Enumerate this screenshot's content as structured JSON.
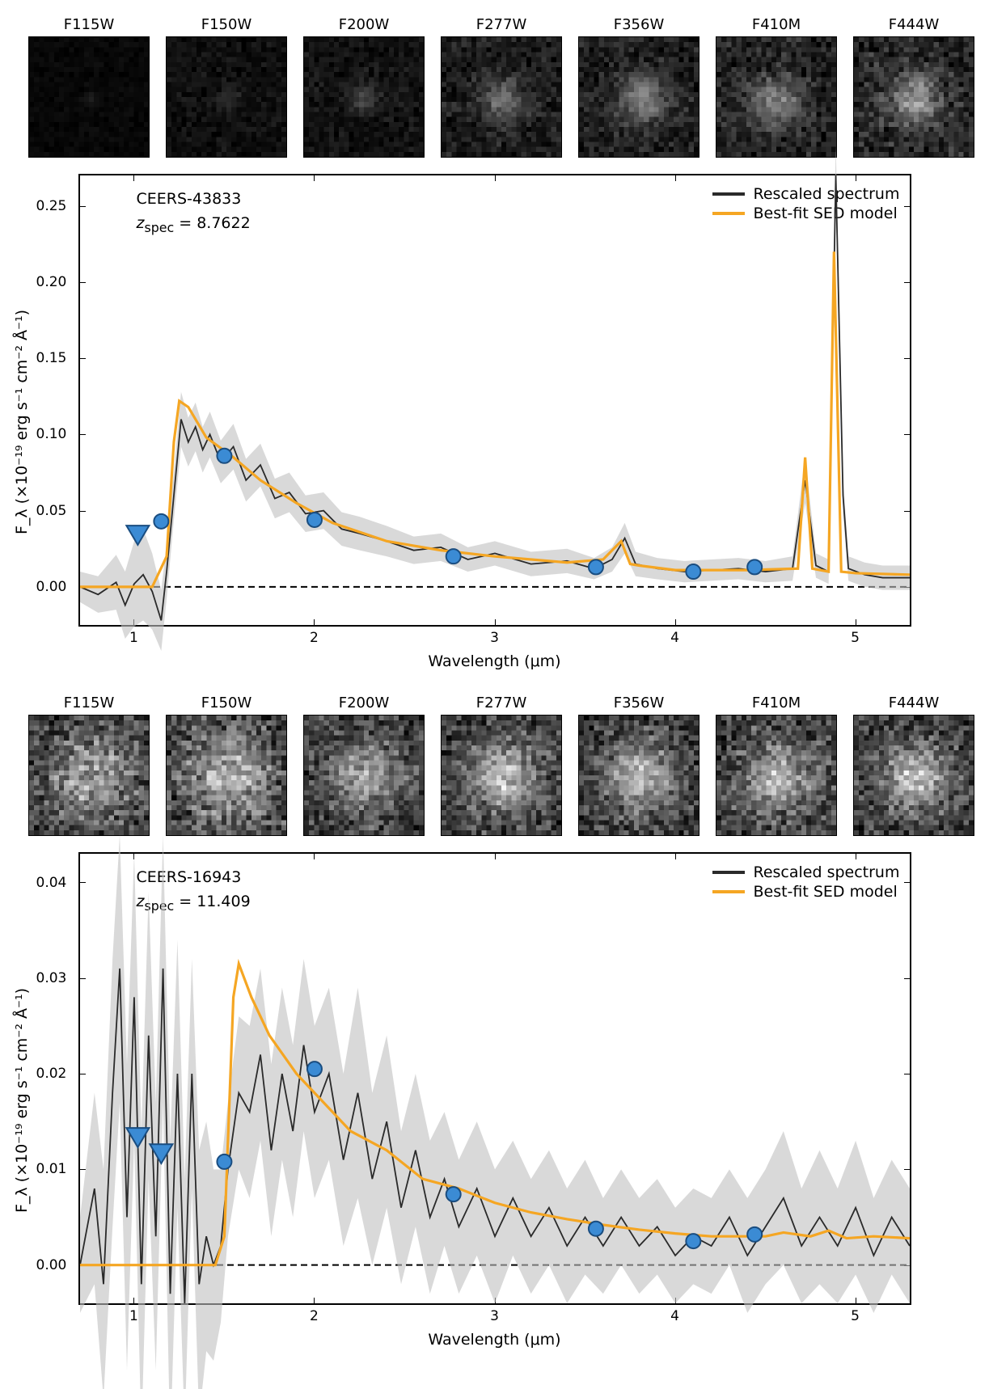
{
  "filters": [
    "F115W",
    "F150W",
    "F200W",
    "F277W",
    "F356W",
    "F410M",
    "F444W"
  ],
  "axis_labels": {
    "x": "Wavelength (μm)",
    "y": "F_λ (×10⁻¹⁹ erg s⁻¹ cm⁻² Å⁻¹)"
  },
  "legend": {
    "spectrum": "Rescaled spectrum",
    "sed": "Best-fit SED model"
  },
  "colors": {
    "spectrum": "#2a2a2a",
    "spectrum_band": "#bfbfbf",
    "sed": "#f5a623",
    "phot_fill": "#3b8bd4",
    "phot_edge": "#1a4d80",
    "axis": "#000000",
    "bg": "#ffffff"
  },
  "marker": {
    "radius": 9,
    "tri_size": 14,
    "line_width": 3.2
  },
  "panels": [
    {
      "id": "CEERS-43833",
      "zspec": "8.7622",
      "thumbs": [
        [
          [
            0.05,
            0.48,
            0.52,
            1
          ],
          [
            0.04,
            0.5,
            0.48,
            0.95
          ]
        ],
        [
          [
            0.1,
            0.48,
            0.52,
            1.5
          ],
          [
            0.05,
            0.52,
            0.47,
            1.4
          ]
        ],
        [
          [
            0.12,
            0.5,
            0.5,
            2.0
          ],
          [
            0.08,
            0.45,
            0.52,
            1.8
          ]
        ],
        [
          [
            0.18,
            0.5,
            0.5,
            3.2
          ],
          [
            0.15,
            0.48,
            0.52,
            3.0
          ]
        ],
        [
          [
            0.2,
            0.5,
            0.5,
            3.5
          ],
          [
            0.18,
            0.52,
            0.48,
            3.3
          ]
        ],
        [
          [
            0.22,
            0.5,
            0.49,
            3.6
          ],
          [
            0.18,
            0.43,
            0.56,
            3.4
          ]
        ],
        [
          [
            0.25,
            0.5,
            0.5,
            3.8
          ],
          [
            0.2,
            0.48,
            0.51,
            3.5
          ]
        ]
      ],
      "xlim": [
        0.7,
        5.3
      ],
      "ylim": [
        -0.025,
        0.27
      ],
      "xticks": [
        1,
        2,
        3,
        4,
        5
      ],
      "yticks": [
        0.0,
        0.05,
        0.1,
        0.15,
        0.2,
        0.25
      ],
      "phot_circles": [
        [
          1.15,
          0.043
        ],
        [
          1.5,
          0.086
        ],
        [
          2.0,
          0.044
        ],
        [
          2.77,
          0.02
        ],
        [
          3.56,
          0.013
        ],
        [
          4.1,
          0.01
        ],
        [
          4.44,
          0.013
        ]
      ],
      "phot_triangles": [
        [
          1.02,
          0.035
        ]
      ],
      "sed": [
        [
          0.7,
          0.0
        ],
        [
          1.1,
          0.0
        ],
        [
          1.18,
          0.02
        ],
        [
          1.22,
          0.095
        ],
        [
          1.25,
          0.122
        ],
        [
          1.3,
          0.118
        ],
        [
          1.4,
          0.098
        ],
        [
          1.55,
          0.085
        ],
        [
          1.7,
          0.07
        ],
        [
          1.9,
          0.055
        ],
        [
          2.1,
          0.042
        ],
        [
          2.4,
          0.03
        ],
        [
          2.7,
          0.024
        ],
        [
          3.0,
          0.02
        ],
        [
          3.4,
          0.016
        ],
        [
          3.6,
          0.018
        ],
        [
          3.7,
          0.03
        ],
        [
          3.75,
          0.015
        ],
        [
          3.8,
          0.014
        ],
        [
          4.0,
          0.011
        ],
        [
          4.4,
          0.011
        ],
        [
          4.68,
          0.012
        ],
        [
          4.72,
          0.085
        ],
        [
          4.76,
          0.012
        ],
        [
          4.85,
          0.01
        ],
        [
          4.88,
          0.22
        ],
        [
          4.92,
          0.01
        ],
        [
          5.0,
          0.009
        ],
        [
          5.3,
          0.008
        ]
      ],
      "spectrum": [
        [
          0.7,
          0.0,
          0.01
        ],
        [
          0.8,
          -0.005,
          0.012
        ],
        [
          0.9,
          0.003,
          0.018
        ],
        [
          0.95,
          -0.012,
          0.022
        ],
        [
          1.0,
          0.002,
          0.028
        ],
        [
          1.05,
          0.008,
          0.03
        ],
        [
          1.1,
          -0.003,
          0.025
        ],
        [
          1.15,
          -0.022,
          0.02
        ],
        [
          1.18,
          0.01,
          0.018
        ],
        [
          1.22,
          0.06,
          0.016
        ],
        [
          1.26,
          0.11,
          0.018
        ],
        [
          1.3,
          0.095,
          0.016
        ],
        [
          1.34,
          0.105,
          0.016
        ],
        [
          1.38,
          0.09,
          0.015
        ],
        [
          1.42,
          0.1,
          0.015
        ],
        [
          1.48,
          0.082,
          0.014
        ],
        [
          1.55,
          0.092,
          0.015
        ],
        [
          1.62,
          0.07,
          0.014
        ],
        [
          1.7,
          0.08,
          0.014
        ],
        [
          1.78,
          0.058,
          0.013
        ],
        [
          1.86,
          0.062,
          0.013
        ],
        [
          1.95,
          0.048,
          0.012
        ],
        [
          2.05,
          0.05,
          0.012
        ],
        [
          2.15,
          0.038,
          0.011
        ],
        [
          2.25,
          0.035,
          0.011
        ],
        [
          2.4,
          0.03,
          0.01
        ],
        [
          2.55,
          0.024,
          0.009
        ],
        [
          2.7,
          0.026,
          0.009
        ],
        [
          2.85,
          0.018,
          0.008
        ],
        [
          3.0,
          0.022,
          0.008
        ],
        [
          3.2,
          0.015,
          0.008
        ],
        [
          3.4,
          0.017,
          0.008
        ],
        [
          3.55,
          0.012,
          0.007
        ],
        [
          3.65,
          0.018,
          0.008
        ],
        [
          3.72,
          0.032,
          0.01
        ],
        [
          3.78,
          0.015,
          0.008
        ],
        [
          3.9,
          0.012,
          0.007
        ],
        [
          4.05,
          0.01,
          0.007
        ],
        [
          4.2,
          0.011,
          0.007
        ],
        [
          4.35,
          0.012,
          0.007
        ],
        [
          4.5,
          0.01,
          0.007
        ],
        [
          4.65,
          0.012,
          0.008
        ],
        [
          4.72,
          0.07,
          0.015
        ],
        [
          4.78,
          0.014,
          0.008
        ],
        [
          4.85,
          0.01,
          0.008
        ],
        [
          4.89,
          0.27,
          0.02
        ],
        [
          4.93,
          0.06,
          0.012
        ],
        [
          4.96,
          0.012,
          0.008
        ],
        [
          5.05,
          0.008,
          0.008
        ],
        [
          5.15,
          0.006,
          0.008
        ],
        [
          5.3,
          0.006,
          0.008
        ]
      ]
    },
    {
      "id": "CEERS-16943",
      "zspec": "11.409",
      "thumbs": [
        [
          [
            0.4,
            0.5,
            0.5,
            6
          ]
        ],
        [
          [
            0.42,
            0.5,
            0.5,
            6
          ]
        ],
        [
          [
            0.35,
            0.5,
            0.5,
            6
          ],
          [
            0.1,
            0.5,
            0.48,
            2.5
          ]
        ],
        [
          [
            0.35,
            0.5,
            0.5,
            6
          ],
          [
            0.15,
            0.5,
            0.48,
            3.0
          ],
          [
            0.1,
            0.45,
            0.55,
            2.4
          ]
        ],
        [
          [
            0.35,
            0.5,
            0.5,
            6
          ],
          [
            0.16,
            0.5,
            0.47,
            3.0
          ]
        ],
        [
          [
            0.37,
            0.5,
            0.5,
            6
          ],
          [
            0.15,
            0.48,
            0.5,
            3.0
          ]
        ],
        [
          [
            0.35,
            0.5,
            0.5,
            6
          ],
          [
            0.16,
            0.5,
            0.48,
            3.0
          ],
          [
            0.1,
            0.45,
            0.55,
            2.5
          ]
        ]
      ],
      "xlim": [
        0.7,
        5.3
      ],
      "ylim": [
        -0.004,
        0.043
      ],
      "xticks": [
        1,
        2,
        3,
        4,
        5
      ],
      "yticks": [
        0.0,
        0.01,
        0.02,
        0.03,
        0.04
      ],
      "phot_circles": [
        [
          1.5,
          0.0108
        ],
        [
          2.0,
          0.0205
        ],
        [
          2.77,
          0.0074
        ],
        [
          3.56,
          0.0038
        ],
        [
          4.1,
          0.0025
        ],
        [
          4.44,
          0.0032
        ]
      ],
      "phot_triangles": [
        [
          1.02,
          0.0135
        ],
        [
          1.15,
          0.0118
        ]
      ],
      "sed": [
        [
          0.7,
          0.0
        ],
        [
          1.45,
          0.0
        ],
        [
          1.5,
          0.003
        ],
        [
          1.55,
          0.028
        ],
        [
          1.58,
          0.0315
        ],
        [
          1.65,
          0.028
        ],
        [
          1.75,
          0.024
        ],
        [
          1.9,
          0.02
        ],
        [
          2.0,
          0.018
        ],
        [
          2.2,
          0.014
        ],
        [
          2.4,
          0.012
        ],
        [
          2.6,
          0.009
        ],
        [
          2.8,
          0.008
        ],
        [
          3.0,
          0.0065
        ],
        [
          3.2,
          0.0055
        ],
        [
          3.4,
          0.0048
        ],
        [
          3.6,
          0.0042
        ],
        [
          3.8,
          0.0037
        ],
        [
          4.0,
          0.0033
        ],
        [
          4.2,
          0.003
        ],
        [
          4.5,
          0.003
        ],
        [
          4.6,
          0.0034
        ],
        [
          4.75,
          0.003
        ],
        [
          4.85,
          0.0036
        ],
        [
          4.95,
          0.0028
        ],
        [
          5.1,
          0.003
        ],
        [
          5.3,
          0.0028
        ]
      ],
      "spectrum": [
        [
          0.7,
          0.0,
          0.005
        ],
        [
          0.78,
          0.008,
          0.01
        ],
        [
          0.83,
          -0.002,
          0.012
        ],
        [
          0.88,
          0.018,
          0.014
        ],
        [
          0.92,
          0.031,
          0.014
        ],
        [
          0.96,
          0.005,
          0.016
        ],
        [
          1.0,
          0.028,
          0.015
        ],
        [
          1.04,
          -0.002,
          0.016
        ],
        [
          1.08,
          0.024,
          0.015
        ],
        [
          1.12,
          0.003,
          0.014
        ],
        [
          1.16,
          0.031,
          0.014
        ],
        [
          1.2,
          -0.003,
          0.016
        ],
        [
          1.24,
          0.02,
          0.014
        ],
        [
          1.28,
          -0.004,
          0.013
        ],
        [
          1.32,
          0.02,
          0.012
        ],
        [
          1.36,
          -0.002,
          0.014
        ],
        [
          1.4,
          0.003,
          0.012
        ],
        [
          1.44,
          0.0,
          0.01
        ],
        [
          1.48,
          0.002,
          0.008
        ],
        [
          1.52,
          0.01,
          0.007
        ],
        [
          1.58,
          0.018,
          0.008
        ],
        [
          1.64,
          0.016,
          0.009
        ],
        [
          1.7,
          0.022,
          0.009
        ],
        [
          1.76,
          0.012,
          0.009
        ],
        [
          1.82,
          0.02,
          0.009
        ],
        [
          1.88,
          0.014,
          0.009
        ],
        [
          1.94,
          0.023,
          0.009
        ],
        [
          2.0,
          0.016,
          0.009
        ],
        [
          2.08,
          0.02,
          0.009
        ],
        [
          2.16,
          0.011,
          0.009
        ],
        [
          2.24,
          0.018,
          0.011
        ],
        [
          2.32,
          0.009,
          0.009
        ],
        [
          2.4,
          0.015,
          0.009
        ],
        [
          2.48,
          0.006,
          0.008
        ],
        [
          2.56,
          0.012,
          0.008
        ],
        [
          2.64,
          0.005,
          0.008
        ],
        [
          2.72,
          0.009,
          0.007
        ],
        [
          2.8,
          0.004,
          0.007
        ],
        [
          2.9,
          0.008,
          0.007
        ],
        [
          3.0,
          0.003,
          0.007
        ],
        [
          3.1,
          0.007,
          0.006
        ],
        [
          3.2,
          0.003,
          0.006
        ],
        [
          3.3,
          0.006,
          0.006
        ],
        [
          3.4,
          0.002,
          0.006
        ],
        [
          3.5,
          0.005,
          0.006
        ],
        [
          3.6,
          0.002,
          0.005
        ],
        [
          3.7,
          0.005,
          0.005
        ],
        [
          3.8,
          0.002,
          0.005
        ],
        [
          3.9,
          0.004,
          0.005
        ],
        [
          4.0,
          0.001,
          0.005
        ],
        [
          4.1,
          0.003,
          0.005
        ],
        [
          4.2,
          0.002,
          0.005
        ],
        [
          4.3,
          0.005,
          0.005
        ],
        [
          4.4,
          0.001,
          0.006
        ],
        [
          4.5,
          0.004,
          0.006
        ],
        [
          4.6,
          0.007,
          0.007
        ],
        [
          4.7,
          0.002,
          0.006
        ],
        [
          4.8,
          0.005,
          0.007
        ],
        [
          4.9,
          0.002,
          0.006
        ],
        [
          5.0,
          0.006,
          0.007
        ],
        [
          5.1,
          0.001,
          0.006
        ],
        [
          5.2,
          0.005,
          0.006
        ],
        [
          5.3,
          0.002,
          0.006
        ]
      ]
    }
  ]
}
